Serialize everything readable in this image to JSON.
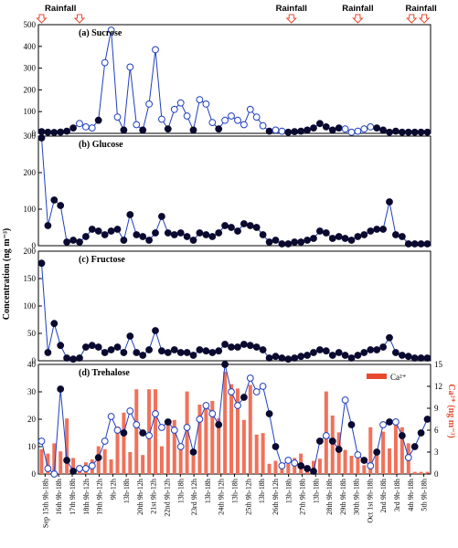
{
  "rainfall_label": "Rainfall",
  "y_axis_label": "Concentration  (ng m⁻³)",
  "y2_axis_label": "Ca²⁺ (ng m⁻³)",
  "legend_label": "Ca²⁺",
  "rain_groups": [
    {
      "label_at": 3,
      "arrows": [
        0,
        6
      ]
    },
    {
      "label_at": 39.5,
      "arrows": [
        39.5
      ]
    },
    {
      "label_at": 50,
      "arrows": [
        50
      ]
    },
    {
      "label_at": 60,
      "arrows": [
        58.5,
        60.5
      ]
    }
  ],
  "chart_data": [
    {
      "type": "line",
      "title": "(a) Sucrose",
      "ylim": [
        0,
        500
      ],
      "yticks": [
        0,
        100,
        200,
        300,
        400,
        500
      ],
      "x": [
        0,
        1,
        2,
        3,
        4,
        5,
        6,
        7,
        8,
        9,
        10,
        11,
        12,
        13,
        14,
        15,
        16,
        17,
        18,
        19,
        20,
        21,
        22,
        23,
        24,
        25,
        26,
        27,
        28,
        29,
        30,
        31,
        32,
        33,
        34,
        35,
        36,
        37,
        38,
        39,
        40,
        41,
        42,
        43,
        44,
        45,
        46,
        47,
        48,
        49,
        50,
        51,
        52,
        53,
        54,
        55,
        56,
        57,
        58,
        59,
        60,
        61
      ],
      "values": [
        8,
        5,
        4,
        6,
        10,
        25,
        45,
        30,
        25,
        60,
        325,
        475,
        75,
        15,
        305,
        40,
        15,
        135,
        385,
        65,
        20,
        110,
        140,
        80,
        15,
        155,
        135,
        50,
        20,
        60,
        80,
        60,
        40,
        110,
        75,
        35,
        10,
        15,
        10,
        5,
        8,
        10,
        15,
        25,
        45,
        30,
        15,
        25,
        20,
        5,
        10,
        20,
        30,
        25,
        15,
        5,
        10,
        5,
        5,
        5,
        5,
        5
      ],
      "filled": [
        1,
        1,
        1,
        1,
        1,
        1,
        0,
        0,
        0,
        1,
        0,
        0,
        0,
        1,
        0,
        0,
        1,
        0,
        0,
        0,
        1,
        0,
        0,
        0,
        1,
        0,
        0,
        0,
        1,
        0,
        0,
        0,
        0,
        0,
        0,
        0,
        1,
        0,
        0,
        1,
        1,
        1,
        1,
        1,
        1,
        1,
        1,
        1,
        0,
        0,
        0,
        0,
        0,
        1,
        1,
        1,
        1,
        1,
        1,
        1,
        1,
        1
      ]
    },
    {
      "type": "line",
      "title": "(b) Glucose",
      "ylim": [
        0,
        300
      ],
      "yticks": [
        0,
        100,
        200,
        300
      ],
      "x": [
        0,
        1,
        2,
        3,
        4,
        5,
        6,
        7,
        8,
        9,
        10,
        11,
        12,
        13,
        14,
        15,
        16,
        17,
        18,
        19,
        20,
        21,
        22,
        23,
        24,
        25,
        26,
        27,
        28,
        29,
        30,
        31,
        32,
        33,
        34,
        35,
        36,
        37,
        38,
        39,
        40,
        41,
        42,
        43,
        44,
        45,
        46,
        47,
        48,
        49,
        50,
        51,
        52,
        53,
        54,
        55,
        56,
        57,
        58,
        59,
        60,
        61
      ],
      "values": [
        295,
        55,
        125,
        110,
        10,
        15,
        10,
        25,
        45,
        40,
        30,
        40,
        45,
        15,
        85,
        30,
        25,
        15,
        35,
        80,
        35,
        30,
        35,
        25,
        15,
        35,
        30,
        25,
        35,
        55,
        50,
        40,
        60,
        55,
        50,
        30,
        10,
        15,
        5,
        5,
        10,
        10,
        15,
        20,
        40,
        35,
        20,
        25,
        20,
        15,
        25,
        30,
        40,
        45,
        45,
        120,
        30,
        25,
        5,
        5,
        5,
        5
      ],
      "filled": [
        1,
        1,
        1,
        1,
        1,
        1,
        1,
        1,
        1,
        1,
        1,
        1,
        1,
        1,
        1,
        1,
        1,
        1,
        1,
        1,
        1,
        1,
        1,
        1,
        1,
        1,
        1,
        1,
        1,
        1,
        1,
        1,
        1,
        1,
        1,
        1,
        1,
        1,
        1,
        1,
        1,
        1,
        1,
        1,
        1,
        1,
        1,
        1,
        1,
        1,
        1,
        1,
        1,
        1,
        1,
        1,
        1,
        1,
        1,
        1,
        1,
        1
      ]
    },
    {
      "type": "line",
      "title": "(c) Fructose",
      "ylim": [
        0,
        200
      ],
      "yticks": [
        0,
        50,
        100,
        150,
        200
      ],
      "x": [
        0,
        1,
        2,
        3,
        4,
        5,
        6,
        7,
        8,
        9,
        10,
        11,
        12,
        13,
        14,
        15,
        16,
        17,
        18,
        19,
        20,
        21,
        22,
        23,
        24,
        25,
        26,
        27,
        28,
        29,
        30,
        31,
        32,
        33,
        34,
        35,
        36,
        37,
        38,
        39,
        40,
        41,
        42,
        43,
        44,
        45,
        46,
        47,
        48,
        49,
        50,
        51,
        52,
        53,
        54,
        55,
        56,
        57,
        58,
        59,
        60,
        61
      ],
      "values": [
        178,
        15,
        68,
        28,
        5,
        3,
        5,
        25,
        28,
        25,
        15,
        20,
        25,
        15,
        45,
        15,
        10,
        20,
        55,
        18,
        15,
        20,
        15,
        15,
        10,
        20,
        18,
        15,
        18,
        30,
        25,
        25,
        30,
        28,
        25,
        20,
        5,
        8,
        5,
        3,
        5,
        8,
        10,
        15,
        20,
        18,
        10,
        15,
        10,
        5,
        10,
        15,
        20,
        20,
        25,
        42,
        15,
        10,
        8,
        5,
        5,
        5
      ],
      "filled": [
        1,
        1,
        1,
        1,
        1,
        1,
        1,
        1,
        1,
        1,
        1,
        1,
        1,
        1,
        1,
        1,
        1,
        1,
        1,
        1,
        1,
        1,
        1,
        1,
        1,
        1,
        1,
        1,
        1,
        1,
        1,
        1,
        1,
        1,
        1,
        1,
        1,
        1,
        1,
        1,
        1,
        1,
        1,
        1,
        1,
        1,
        1,
        1,
        1,
        1,
        1,
        1,
        1,
        1,
        1,
        1,
        1,
        1,
        1,
        1,
        1,
        1
      ]
    },
    {
      "type": "line",
      "title": "(d) Trehalose",
      "ylim": [
        0,
        40
      ],
      "yticks": [
        0,
        10,
        20,
        30,
        40
      ],
      "y2lim": [
        0,
        15
      ],
      "y2ticks": [
        0,
        3,
        6,
        9,
        12,
        15
      ],
      "x": [
        0,
        1,
        2,
        3,
        4,
        5,
        6,
        7,
        8,
        9,
        10,
        11,
        12,
        13,
        14,
        15,
        16,
        17,
        18,
        19,
        20,
        21,
        22,
        23,
        24,
        25,
        26,
        27,
        28,
        29,
        30,
        31,
        32,
        33,
        34,
        35,
        36,
        37,
        38,
        39,
        40,
        41,
        42,
        43,
        44,
        45,
        46,
        47,
        48,
        49,
        50,
        51,
        52,
        53,
        54,
        55,
        56,
        57,
        58,
        59,
        60,
        61
      ],
      "values": [
        12,
        2,
        0,
        31,
        5,
        1,
        2,
        2,
        3,
        6,
        12,
        21,
        16,
        15,
        23,
        18,
        15,
        14,
        22,
        17,
        19,
        16,
        10,
        17,
        8,
        20,
        25,
        22,
        18,
        40,
        30,
        25,
        28,
        35,
        30,
        32,
        22,
        10,
        3,
        5,
        4,
        3,
        2,
        1,
        12,
        14,
        12,
        9,
        27,
        18,
        7,
        5,
        3,
        8,
        18,
        19,
        19,
        14,
        6,
        10,
        15,
        20
      ],
      "filled": [
        0,
        0,
        0,
        1,
        1,
        1,
        0,
        0,
        0,
        1,
        0,
        0,
        0,
        1,
        0,
        0,
        1,
        0,
        0,
        0,
        1,
        0,
        0,
        0,
        1,
        0,
        0,
        0,
        1,
        1,
        0,
        0,
        1,
        0,
        0,
        0,
        1,
        1,
        0,
        0,
        0,
        1,
        1,
        1,
        1,
        0,
        1,
        1,
        0,
        1,
        0,
        1,
        0,
        1,
        0,
        1,
        0,
        1,
        0,
        1,
        1,
        1
      ],
      "bars_name": "Ca²⁺",
      "bars": [
        3.4,
        2.8,
        4.2,
        3.1,
        7.6,
        2.2,
        0.5,
        1.6,
        2.0,
        3.8,
        3.4,
        2.0,
        6.5,
        8.4,
        3.0,
        11.6,
        2.6,
        11.6,
        11.6,
        3.8,
        7.3,
        7.4,
        3.8,
        11.3,
        2.5,
        9.5,
        9.8,
        10.0,
        7.6,
        14.0,
        12.3,
        11.7,
        7.4,
        12.2,
        5.4,
        5.6,
        1.4,
        1.8,
        1.0,
        1.4,
        2.2,
        2.8,
        1.2,
        1.8,
        2.1,
        11.3,
        8.0,
        5.7,
        3.3,
        2.5,
        2.6,
        1.2,
        6.4,
        3.2,
        5.8,
        3.5,
        7.4,
        6.4,
        4.2,
        0.3,
        0.3,
        0.3
      ],
      "xticklabels": [
        "Sep 15th 9h-18h",
        "16th 9h-18h",
        "17th 9h-18h",
        "18th 9h-12h",
        "19th 9h-12h",
        "9h-12h",
        "13h-18h",
        "20th 9h-12h",
        "21st 9h-12h",
        "22nd 9h-12h",
        "13h-18h",
        "23rd 9h-12h",
        "13h-18h",
        "24th 9h-12h",
        "13h-18h",
        "25th 9h-12h",
        "13h-18h",
        "26th 9h-12h",
        "13h-18h",
        "27th 9h-18h",
        "13h-18h",
        "28th 9h-18h",
        "29th 9h-18h",
        "30th 9h-18h",
        "Oct 1st 9h-18h",
        "2nd 9h-18h",
        "3rd 9h-18h",
        "4th 9h-18h",
        "5th 9h-18h"
      ]
    }
  ]
}
